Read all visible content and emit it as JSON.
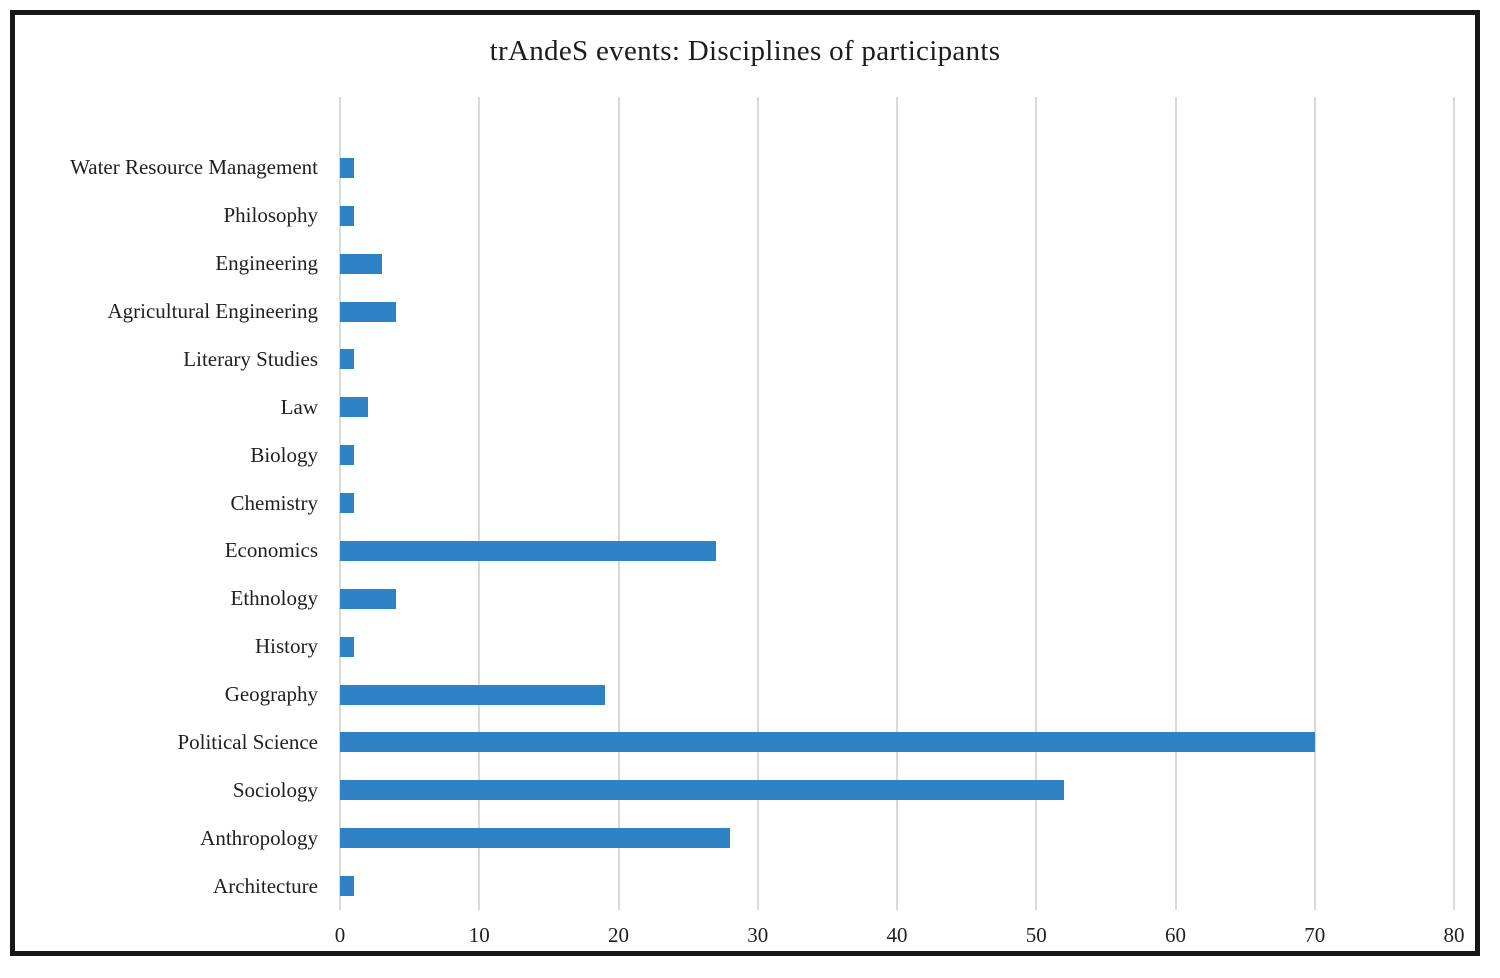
{
  "chart_data": {
    "type": "bar",
    "orientation": "horizontal",
    "title": "trAndeS events: Disciplines of participants",
    "categories": [
      "Water Resource Management",
      "Philosophy",
      "Engineering",
      "Agricultural Engineering",
      "Literary Studies",
      "Law",
      "Biology",
      "Chemistry",
      "Economics",
      "Ethnology",
      "History",
      "Geography",
      "Political Science",
      "Sociology",
      "Anthropology",
      "Architecture"
    ],
    "values": [
      1,
      1,
      3,
      4,
      1,
      2,
      1,
      1,
      27,
      4,
      1,
      19,
      70,
      52,
      28,
      1
    ],
    "xlabel": "",
    "ylabel": "",
    "xlim": [
      0,
      80
    ],
    "x_ticks": [
      0,
      10,
      20,
      30,
      40,
      50,
      60,
      70,
      80
    ],
    "grid": "vertical-only",
    "legend_position": "none",
    "colors": {
      "bar": "#2E82C5",
      "gridline": "#D9D9D9",
      "text": "#1f1f1f",
      "frame_border": "#171717",
      "background": "#ffffff"
    }
  }
}
